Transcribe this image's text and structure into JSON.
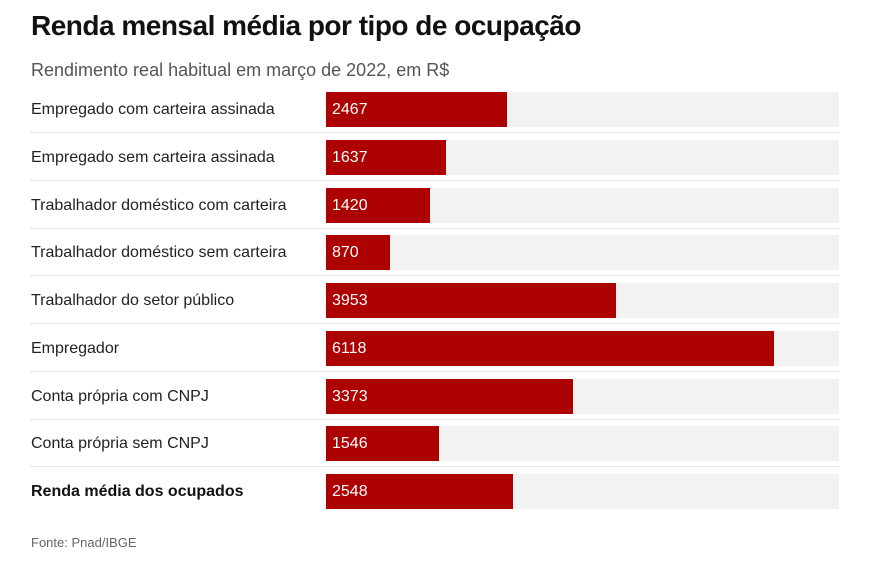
{
  "header": {
    "title": "Renda mensal média por tipo de ocupação",
    "subtitle": "Rendimento real habitual em março de 2022, em R$"
  },
  "footer": {
    "source": "Fonte: Pnad/IBGE"
  },
  "colors": {
    "bar": "#ad0000",
    "track": "#f2f2f2"
  },
  "chart_data": {
    "type": "bar",
    "orientation": "horizontal",
    "title": "Renda mensal média por tipo de ocupação",
    "subtitle": "Rendimento real habitual em março de 2022, em R$",
    "categories": [
      "Empregado com carteira assinada",
      "Empregado sem carteira assinada",
      "Trabalhador doméstico com carteira",
      "Trabalhador doméstico sem carteira",
      "Trabalhador do setor público",
      "Empregador",
      "Conta própria com CNPJ",
      "Conta própria sem CNPJ",
      "Renda média dos ocupados"
    ],
    "values": [
      2467,
      1637,
      1420,
      870,
      3953,
      6118,
      3373,
      1546,
      2548
    ],
    "value_labels": [
      "2467",
      "1637",
      "1420",
      "870",
      "3953",
      "6118",
      "3373",
      "1546",
      "2548"
    ],
    "emphasized_category": "Renda média dos ocupados",
    "xlim": [
      0,
      7000
    ],
    "grid": false,
    "legend": "none"
  }
}
